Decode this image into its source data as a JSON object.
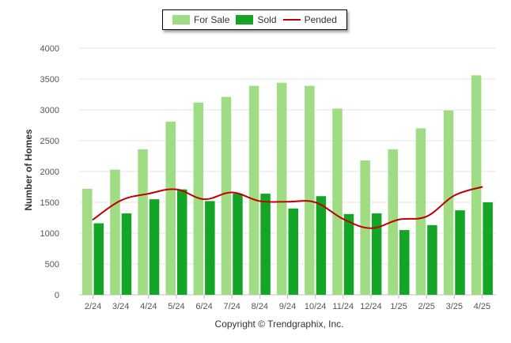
{
  "legend": {
    "for_sale": "For Sale",
    "sold": "Sold",
    "pended": "Pended"
  },
  "colors": {
    "for_sale": "#a0dc84",
    "sold": "#14a526",
    "pended": "#c00000",
    "grid": "#e6e6e6",
    "axis_text": "#555555"
  },
  "copyright": "Copyright © Trendgraphix, Inc.",
  "chart_data": {
    "type": "bar",
    "title": "",
    "xlabel": "",
    "ylabel": "Number of Homes",
    "ylim": [
      0,
      4000
    ],
    "yticks": [
      0,
      500,
      1000,
      1500,
      2000,
      2500,
      3000,
      3500,
      4000
    ],
    "grid": true,
    "legend_position": "top-center",
    "categories": [
      "2/24",
      "3/24",
      "4/24",
      "5/24",
      "6/24",
      "7/24",
      "8/24",
      "9/24",
      "10/24",
      "11/24",
      "12/24",
      "1/25",
      "2/25",
      "3/25",
      "4/25"
    ],
    "series": [
      {
        "name": "For Sale",
        "type": "bar",
        "values": [
          1720,
          2030,
          2360,
          2810,
          3120,
          3210,
          3390,
          3440,
          3390,
          3020,
          2180,
          2360,
          2700,
          2990,
          3560
        ]
      },
      {
        "name": "Sold",
        "type": "bar",
        "values": [
          1160,
          1320,
          1550,
          1710,
          1520,
          1640,
          1640,
          1400,
          1600,
          1310,
          1320,
          1050,
          1130,
          1370,
          1500
        ]
      },
      {
        "name": "Pended",
        "type": "line",
        "values": [
          1220,
          1530,
          1640,
          1710,
          1550,
          1660,
          1520,
          1510,
          1500,
          1230,
          1080,
          1220,
          1270,
          1610,
          1750
        ]
      }
    ]
  }
}
